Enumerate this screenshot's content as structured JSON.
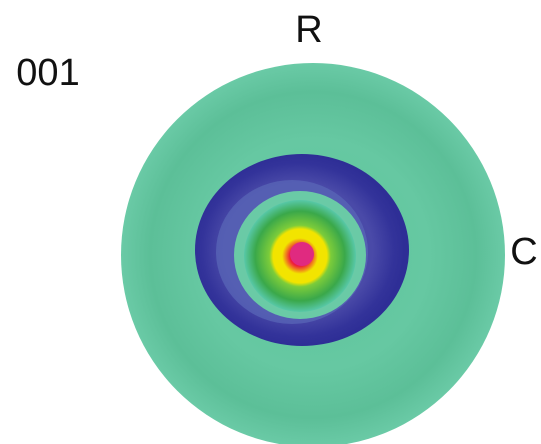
{
  "labels": {
    "id": "001",
    "top": "R",
    "right": "C"
  }
}
